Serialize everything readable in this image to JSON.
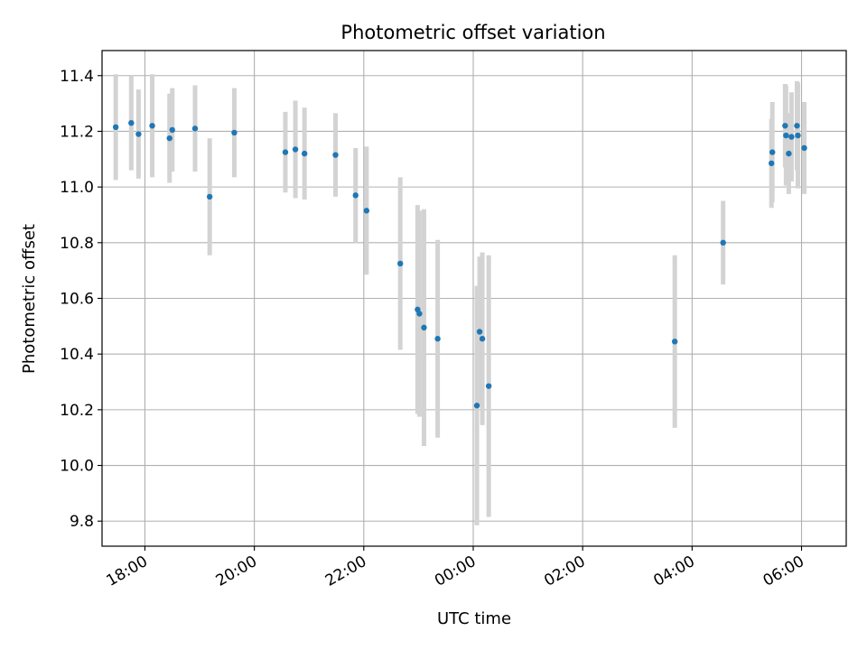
{
  "chart_data": {
    "type": "scatter",
    "title": "Photometric offset variation",
    "xlabel": "UTC time",
    "ylabel": "Photometric offset",
    "x_is_time": true,
    "time_reference": "evening to next morning (UTC)",
    "xlim": [
      "17:13",
      "06:49"
    ],
    "ylim": [
      9.71,
      11.49
    ],
    "x_ticks": [
      "18:00",
      "20:00",
      "22:00",
      "00:00",
      "02:00",
      "04:00",
      "06:00"
    ],
    "y_ticks": [
      9.8,
      10.0,
      10.2,
      10.4,
      10.6,
      10.8,
      11.0,
      11.2,
      11.4
    ],
    "y_tick_labels": [
      "9.8",
      "10.0",
      "10.2",
      "10.4",
      "10.6",
      "10.8",
      "11.0",
      "11.2",
      "11.4"
    ],
    "grid": true,
    "marker_color": "#1f77b4",
    "errorbar_color": "#d3d3d3",
    "series": [
      {
        "points": [
          {
            "x": "17:28",
            "y": 11.215,
            "yerr": 0.19
          },
          {
            "x": "17:45",
            "y": 11.23,
            "yerr": 0.17
          },
          {
            "x": "17:53",
            "y": 11.19,
            "yerr": 0.16
          },
          {
            "x": "18:08",
            "y": 11.22,
            "yerr": 0.185
          },
          {
            "x": "18:27",
            "y": 11.175,
            "yerr": 0.16
          },
          {
            "x": "18:30",
            "y": 11.205,
            "yerr": 0.15
          },
          {
            "x": "18:55",
            "y": 11.21,
            "yerr": 0.155
          },
          {
            "x": "19:11",
            "y": 10.965,
            "yerr": 0.21
          },
          {
            "x": "19:38",
            "y": 11.195,
            "yerr": 0.16
          },
          {
            "x": "20:34",
            "y": 11.125,
            "yerr": 0.145
          },
          {
            "x": "20:45",
            "y": 11.135,
            "yerr": 0.175
          },
          {
            "x": "20:55",
            "y": 11.12,
            "yerr": 0.165
          },
          {
            "x": "21:29",
            "y": 11.115,
            "yerr": 0.15
          },
          {
            "x": "21:51",
            "y": 10.97,
            "yerr": 0.17
          },
          {
            "x": "22:03",
            "y": 10.915,
            "yerr": 0.23
          },
          {
            "x": "22:40",
            "y": 10.725,
            "yerr": 0.31
          },
          {
            "x": "22:59",
            "y": 10.56,
            "yerr": 0.375
          },
          {
            "x": "23:01",
            "y": 10.545,
            "yerr": 0.37
          },
          {
            "x": "23:06",
            "y": 10.495,
            "yerr": 0.425
          },
          {
            "x": "23:21",
            "y": 10.455,
            "yerr": 0.355
          },
          {
            "x": "00:04",
            "y": 10.215,
            "yerr": 0.43
          },
          {
            "x": "00:07",
            "y": 10.48,
            "yerr": 0.27
          },
          {
            "x": "00:10",
            "y": 10.455,
            "yerr": 0.31
          },
          {
            "x": "00:17",
            "y": 10.285,
            "yerr": 0.47
          },
          {
            "x": "03:41",
            "y": 10.445,
            "yerr": 0.31
          },
          {
            "x": "04:34",
            "y": 10.8,
            "yerr": 0.15
          },
          {
            "x": "05:27",
            "y": 11.085,
            "yerr": 0.16
          },
          {
            "x": "05:28",
            "y": 11.125,
            "yerr": 0.18
          },
          {
            "x": "05:42",
            "y": 11.22,
            "yerr": 0.15
          },
          {
            "x": "05:43",
            "y": 11.185,
            "yerr": 0.18
          },
          {
            "x": "05:46",
            "y": 11.12,
            "yerr": 0.145
          },
          {
            "x": "05:49",
            "y": 11.18,
            "yerr": 0.16
          },
          {
            "x": "05:55",
            "y": 11.22,
            "yerr": 0.16
          },
          {
            "x": "05:56",
            "y": 11.185,
            "yerr": 0.19
          },
          {
            "x": "06:03",
            "y": 11.14,
            "yerr": 0.165
          }
        ]
      }
    ]
  }
}
